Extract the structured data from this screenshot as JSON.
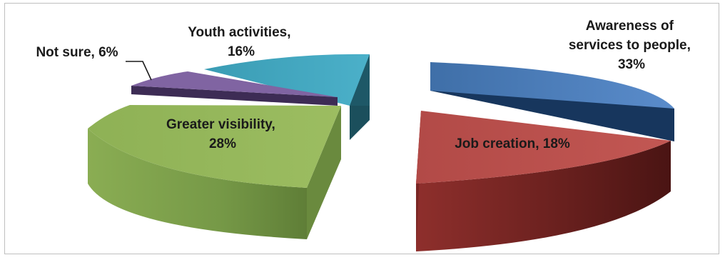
{
  "chart_data": {
    "type": "pie",
    "title": "",
    "exploded": true,
    "three_d": true,
    "legend": "none",
    "slices": [
      {
        "label": "Awareness of services to people",
        "value": 33,
        "label_lines": [
          "Awareness of",
          "services to people,",
          "33%"
        ],
        "color": "#4f81bd"
      },
      {
        "label": "Job creation",
        "value": 18,
        "label_lines": [
          "Job creation, 18%"
        ],
        "color": "#c0504d"
      },
      {
        "label": "Greater visibility",
        "value": 28,
        "label_lines": [
          "Greater visibility,",
          "28%"
        ],
        "color": "#9bbb59"
      },
      {
        "label": "Not sure",
        "value": 6,
        "label_lines": [
          "Not sure, 6%"
        ],
        "color": "#8064a2"
      },
      {
        "label": "Youth activities",
        "value": 16,
        "label_lines": [
          "Youth activities,",
          "16%"
        ],
        "color": "#4bacc6"
      }
    ]
  }
}
